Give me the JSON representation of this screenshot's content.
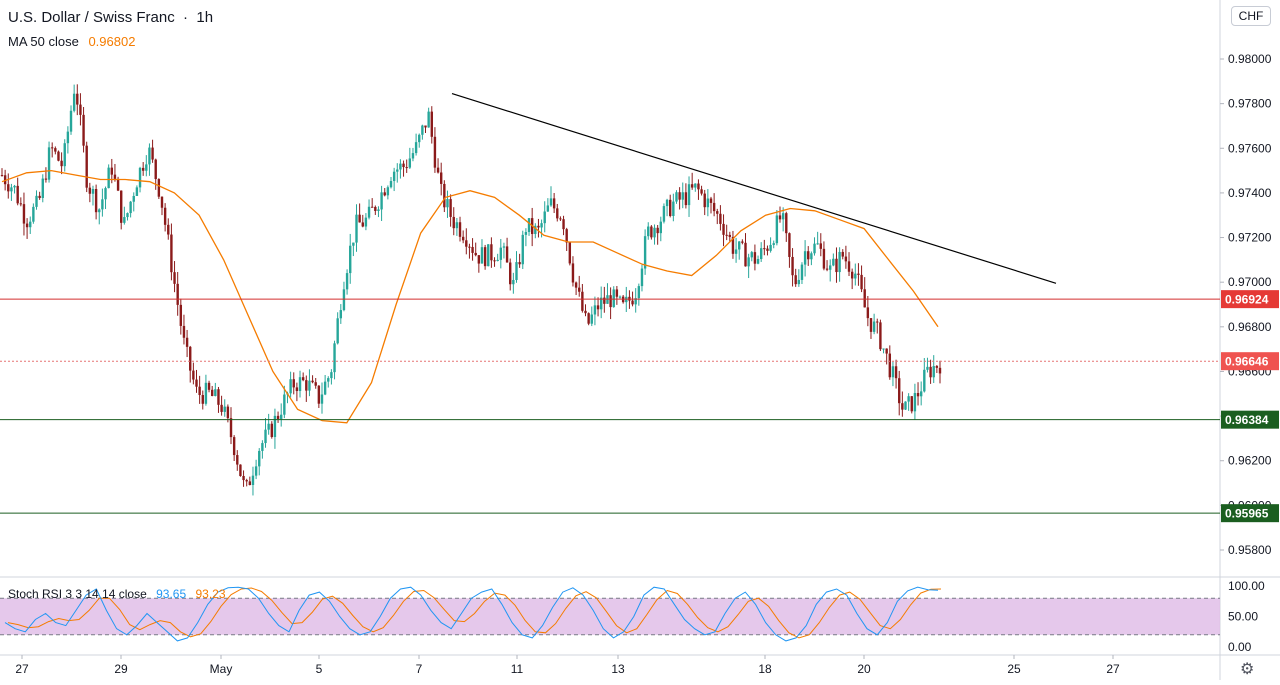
{
  "header": {
    "symbol": "U.S. Dollar / Swiss Franc",
    "interval": "1h",
    "indicator_label": "MA 50 close",
    "indicator_value": "0.96802"
  },
  "currency_badge": "CHF",
  "settings_icon": "gear-icon",
  "colors": {
    "bull": "#26a69a",
    "bear": "#8b1a1a",
    "ma": "#f57c00",
    "resistance": "#d32f2f",
    "support": "#1b5e20",
    "stoch_k": "#2196f3",
    "stoch_d": "#f57c00",
    "stoch_band": "#e1bee7"
  },
  "chart_data": {
    "type": "candlestick",
    "price_range": [
      0.957,
      0.981
    ],
    "y_ticks": [
      "0.98000",
      "0.97800",
      "0.97600",
      "0.97400",
      "0.97200",
      "0.97000",
      "0.96800",
      "0.96600",
      "0.96400",
      "0.96200",
      "0.96000",
      "0.95800"
    ],
    "x_ticks": [
      "27",
      "29",
      "May",
      "5",
      "7",
      "11",
      "13",
      "18",
      "20",
      "25",
      "27"
    ],
    "close_path": [
      0.9748,
      0.9742,
      0.9728,
      0.9735,
      0.976,
      0.9752,
      0.979,
      0.9745,
      0.9733,
      0.9752,
      0.9725,
      0.9745,
      0.976,
      0.974,
      0.9705,
      0.967,
      0.965,
      0.965,
      0.9645,
      0.9628,
      0.9605,
      0.9625,
      0.9633,
      0.9645,
      0.9655,
      0.9655,
      0.9648,
      0.966,
      0.97,
      0.9725,
      0.9728,
      0.9738,
      0.975,
      0.9752,
      0.976,
      0.9775,
      0.974,
      0.9728,
      0.9722,
      0.9712,
      0.9712,
      0.9715,
      0.9698,
      0.9725,
      0.9722,
      0.9735,
      0.973,
      0.97,
      0.968,
      0.969,
      0.9693,
      0.9688,
      0.9696,
      0.9722,
      0.9728,
      0.9735,
      0.9738,
      0.9742,
      0.9735,
      0.9728,
      0.9716,
      0.9712,
      0.971,
      0.9718,
      0.973,
      0.9698,
      0.9715,
      0.9716,
      0.9705,
      0.9712,
      0.9705,
      0.9685,
      0.9676,
      0.966,
      0.9642,
      0.9648,
      0.966,
      0.9664
    ],
    "ma50": {
      "label": "MA 50 close",
      "last": "0.96802",
      "path": [
        0.9745,
        0.9749,
        0.975,
        0.9748,
        0.9746,
        0.9746,
        0.9745,
        0.974,
        0.973,
        0.971,
        0.9685,
        0.966,
        0.9643,
        0.9638,
        0.9637,
        0.9655,
        0.969,
        0.9722,
        0.9738,
        0.9741,
        0.9738,
        0.973,
        0.9721,
        0.9718,
        0.9718,
        0.9713,
        0.9708,
        0.9705,
        0.9703,
        0.9712,
        0.9723,
        0.973,
        0.9733,
        0.9732,
        0.9728,
        0.9724,
        0.971,
        0.9696,
        0.968
      ]
    },
    "trendline": {
      "from": [
        "May 8",
        0.97845
      ],
      "to": [
        "May 26",
        0.96995
      ]
    },
    "horizontal_levels": [
      {
        "name": "resistance",
        "label": "0.96924",
        "price": 0.96924,
        "style": "solid"
      },
      {
        "name": "current",
        "label": "0.96646",
        "price": 0.96646,
        "style": "dotted"
      },
      {
        "name": "support-1",
        "label": "0.96384",
        "price": 0.96384,
        "style": "solid"
      },
      {
        "name": "support-2",
        "label": "0.95965",
        "price": 0.95965,
        "style": "solid"
      }
    ],
    "stoch_rsi": {
      "label": "Stoch RSI 3 3 14 14 close",
      "k": "93.65",
      "d": "93.23",
      "y_ticks": [
        "100.00",
        "50.00",
        "0.00"
      ],
      "band": [
        20,
        80
      ],
      "k_path": [
        40,
        30,
        25,
        45,
        55,
        40,
        35,
        60,
        85,
        95,
        60,
        30,
        20,
        35,
        55,
        40,
        25,
        10,
        15,
        40,
        70,
        90,
        97,
        98,
        95,
        80,
        55,
        35,
        25,
        60,
        85,
        90,
        75,
        50,
        30,
        20,
        25,
        50,
        80,
        95,
        98,
        85,
        60,
        40,
        30,
        55,
        80,
        90,
        95,
        70,
        40,
        20,
        15,
        35,
        65,
        90,
        97,
        85,
        60,
        30,
        15,
        25,
        50,
        85,
        98,
        95,
        70,
        45,
        30,
        20,
        25,
        55,
        80,
        90,
        70,
        40,
        20,
        10,
        15,
        35,
        70,
        90,
        95,
        85,
        55,
        30,
        20,
        40,
        75,
        92,
        98,
        94,
        93
      ]
    }
  }
}
